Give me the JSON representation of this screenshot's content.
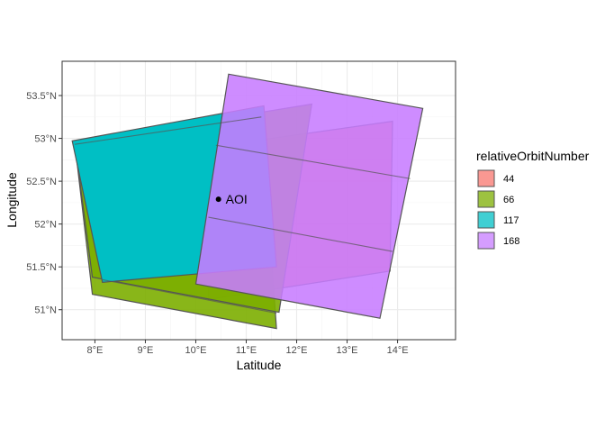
{
  "chart_data": {
    "type": "map",
    "xlabel": "Latitude",
    "ylabel": "Longitude",
    "xlim": [
      7.35,
      15.15
    ],
    "ylim": [
      50.65,
      53.9
    ],
    "x_ticks": [
      8,
      9,
      10,
      11,
      12,
      13,
      14
    ],
    "x_tick_labels": [
      "8°E",
      "9°E",
      "10°E",
      "11°E",
      "12°E",
      "13°E",
      "14°E"
    ],
    "y_ticks": [
      51.0,
      51.5,
      52.0,
      52.5,
      53.0,
      53.5
    ],
    "y_tick_labels": [
      "51°N",
      "51.5°N",
      "52°N",
      "52.5°N",
      "53°N",
      "53.5°N"
    ],
    "grid": true,
    "legend": {
      "title": "relativeOrbitNumber",
      "position": "right",
      "entries": [
        {
          "label": "44",
          "color": "#f8766d"
        },
        {
          "label": "66",
          "color": "#7cae00"
        },
        {
          "label": "117",
          "color": "#00bfc4"
        },
        {
          "label": "168",
          "color": "#c77cff"
        }
      ]
    },
    "point": {
      "label": "AOI",
      "lon": 10.45,
      "lat": 52.29
    },
    "polygons": [
      {
        "orbit": "44",
        "color": "#f8766d",
        "opacity": 0.8,
        "coords": [
          [
            10.3,
            52.9
          ],
          [
            13.9,
            53.2
          ],
          [
            13.85,
            51.45
          ],
          [
            10.25,
            51.12
          ]
        ]
      },
      {
        "orbit": "66",
        "color": "#7cae00",
        "opacity": 0.9,
        "coords": [
          [
            7.6,
            52.95
          ],
          [
            11.3,
            53.3
          ],
          [
            11.6,
            50.78
          ],
          [
            7.95,
            51.18
          ]
        ]
      },
      {
        "orbit": "66",
        "color": "#7cae00",
        "opacity": 0.9,
        "coords": [
          [
            7.6,
            52.95
          ],
          [
            12.3,
            53.4
          ],
          [
            11.65,
            50.97
          ],
          [
            7.95,
            51.38
          ]
        ]
      },
      {
        "orbit": "117",
        "color": "#00bfc4",
        "opacity": 1.0,
        "coords": [
          [
            7.55,
            52.97
          ],
          [
            11.35,
            53.38
          ],
          [
            11.6,
            51.5
          ],
          [
            8.15,
            51.32
          ]
        ]
      },
      {
        "orbit": "168",
        "color": "#c77cff",
        "opacity": 0.88,
        "coords": [
          [
            10.65,
            53.75
          ],
          [
            14.5,
            53.35
          ],
          [
            13.65,
            50.9
          ],
          [
            10.0,
            51.3
          ]
        ]
      }
    ],
    "outline_lines": [
      [
        [
          7.6,
          52.93
        ],
        [
          11.3,
          53.25
        ]
      ],
      [
        [
          10.4,
          52.92
        ],
        [
          14.25,
          52.53
        ]
      ],
      [
        [
          10.25,
          52.08
        ],
        [
          13.9,
          51.68
        ]
      ],
      [
        [
          8.15,
          51.35
        ],
        [
          11.6,
          50.96
        ]
      ]
    ]
  }
}
